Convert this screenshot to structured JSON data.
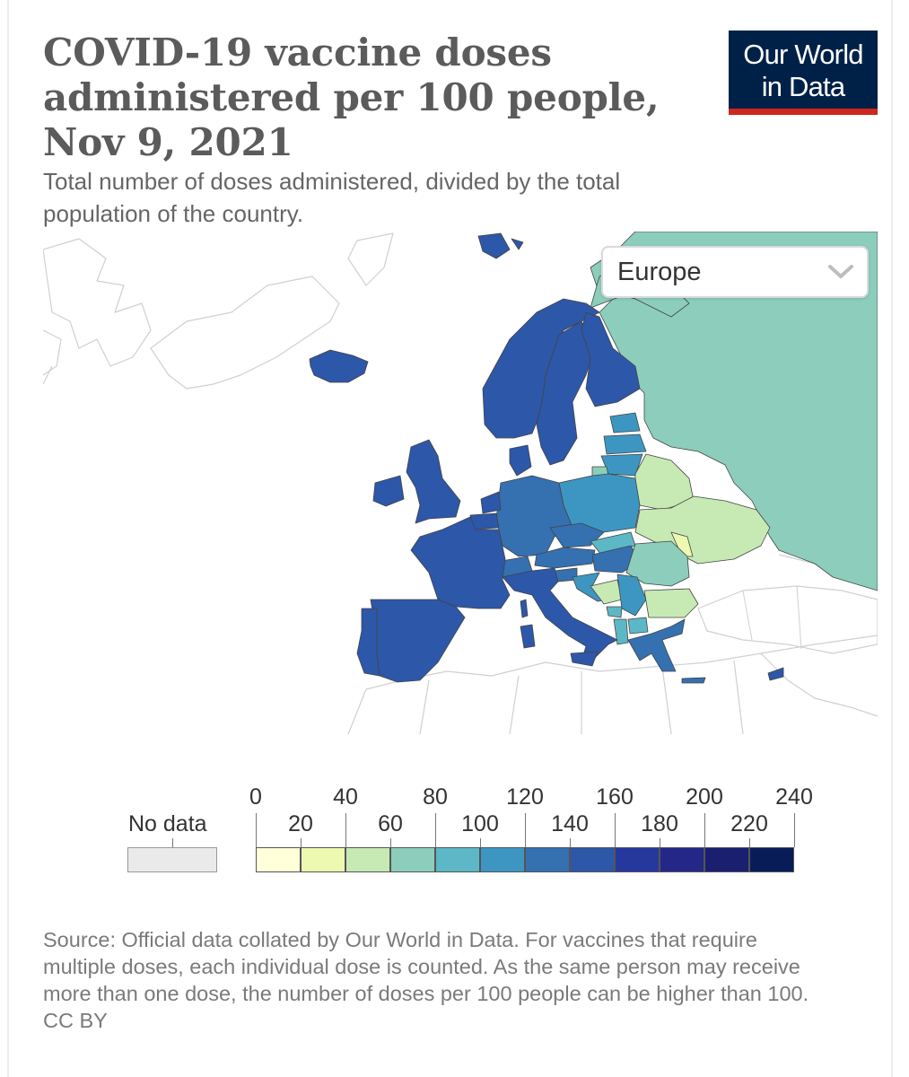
{
  "header": {
    "title": "COVID-19 vaccine doses administered per 100 people, Nov 9, 2021",
    "subtitle": "Total number of doses administered, divided by the total population of the country."
  },
  "logo": {
    "line1": "Our World",
    "line2": "in Data"
  },
  "region_select": {
    "selected": "Europe",
    "icon": "chevron-down-icon"
  },
  "legend": {
    "no_data_label": "No data",
    "top_ticks": [
      "0",
      "40",
      "80",
      "120",
      "160",
      "200",
      "240"
    ],
    "bottom_ticks": [
      "20",
      "60",
      "100",
      "140",
      "180",
      "220"
    ],
    "bins": [
      {
        "from": 0,
        "to": 20,
        "color": "#ffffd9"
      },
      {
        "from": 20,
        "to": 40,
        "color": "#edf8b1"
      },
      {
        "from": 40,
        "to": 60,
        "color": "#c7e9b4"
      },
      {
        "from": 60,
        "to": 80,
        "color": "#8ccdbb"
      },
      {
        "from": 80,
        "to": 100,
        "color": "#5cb8c6"
      },
      {
        "from": 100,
        "to": 120,
        "color": "#3d96c2"
      },
      {
        "from": 120,
        "to": 140,
        "color": "#3570b1"
      },
      {
        "from": 140,
        "to": 160,
        "color": "#2d57a8"
      },
      {
        "from": 160,
        "to": 180,
        "color": "#26389e"
      },
      {
        "from": 180,
        "to": 200,
        "color": "#242788"
      },
      {
        "from": 200,
        "to": 220,
        "color": "#1b1f70"
      },
      {
        "from": 220,
        "to": 240,
        "color": "#081d58"
      }
    ],
    "no_data_color": "#eaeaea"
  },
  "footer": {
    "source": "Source: Official data collated by Our World in Data. For vaccines that require multiple doses, each individual dose is counted. As the same person may receive more than one dose, the number of doses per 100 people can be higher than 100.",
    "license": "CC BY"
  },
  "chart_data": {
    "type": "choropleth",
    "region": "Europe",
    "date": "Nov 9, 2021",
    "unit": "doses per 100 people",
    "legend_range": [
      0,
      240
    ],
    "countries": [
      {
        "name": "Iceland",
        "bin": "140-160"
      },
      {
        "name": "Norway",
        "bin": "140-160"
      },
      {
        "name": "Sweden",
        "bin": "140-160"
      },
      {
        "name": "Finland",
        "bin": "140-160"
      },
      {
        "name": "Denmark",
        "bin": "140-160"
      },
      {
        "name": "Ireland",
        "bin": "140-160"
      },
      {
        "name": "United Kingdom",
        "bin": "140-160"
      },
      {
        "name": "France",
        "bin": "140-160"
      },
      {
        "name": "Spain",
        "bin": "140-160"
      },
      {
        "name": "Portugal",
        "bin": "140-160"
      },
      {
        "name": "Italy",
        "bin": "140-160"
      },
      {
        "name": "Belgium",
        "bin": "140-160"
      },
      {
        "name": "Netherlands",
        "bin": "140-160"
      },
      {
        "name": "Greece",
        "bin": "120-140"
      },
      {
        "name": "Germany",
        "bin": "120-140"
      },
      {
        "name": "Switzerland",
        "bin": "120-140"
      },
      {
        "name": "Austria",
        "bin": "120-140"
      },
      {
        "name": "Czechia",
        "bin": "120-140"
      },
      {
        "name": "Hungary",
        "bin": "120-140"
      },
      {
        "name": "Slovenia",
        "bin": "120-140"
      },
      {
        "name": "Poland",
        "bin": "100-120"
      },
      {
        "name": "Lithuania",
        "bin": "100-120"
      },
      {
        "name": "Latvia",
        "bin": "100-120"
      },
      {
        "name": "Estonia",
        "bin": "100-120"
      },
      {
        "name": "Croatia",
        "bin": "100-120"
      },
      {
        "name": "Serbia",
        "bin": "100-120"
      },
      {
        "name": "Slovakia",
        "bin": "80-100"
      },
      {
        "name": "Montenegro",
        "bin": "80-100"
      },
      {
        "name": "North Macedonia",
        "bin": "80-100"
      },
      {
        "name": "Albania",
        "bin": "80-100"
      },
      {
        "name": "Russia",
        "bin": "60-80"
      },
      {
        "name": "Romania",
        "bin": "60-80"
      },
      {
        "name": "Kaliningrad",
        "bin": "60-80"
      },
      {
        "name": "Bosnia and Herzegovina",
        "bin": "40-60"
      },
      {
        "name": "Bulgaria",
        "bin": "40-60"
      },
      {
        "name": "Belarus",
        "bin": "40-60"
      },
      {
        "name": "Ukraine",
        "bin": "40-60"
      },
      {
        "name": "Moldova",
        "bin": "20-40"
      },
      {
        "name": "Cyprus",
        "bin": "140-160"
      },
      {
        "name": "Malta",
        "bin": "140-160"
      }
    ]
  }
}
